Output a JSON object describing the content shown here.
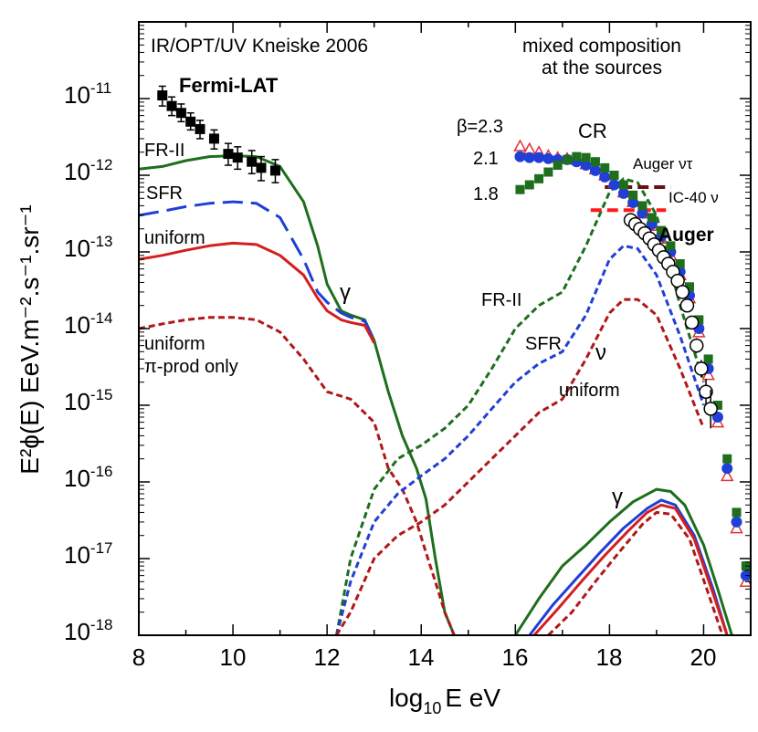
{
  "chart_data": {
    "type": "line",
    "xlabel_prefix": "log",
    "xlabel_sub": "10",
    "xlabel_suffix": "E eV",
    "ylabel": "E²ϕ(E) EeV.m⁻².s⁻¹.sr⁻¹",
    "x_scale": "linear",
    "y_scale": "log",
    "xlim": [
      8,
      21
    ],
    "ylim": [
      1e-18,
      1e-10
    ],
    "x_ticks": [
      "8",
      "10",
      "12",
      "14",
      "16",
      "18",
      "20"
    ],
    "y_ticks": [
      {
        "base": "10",
        "exp": "-11"
      },
      {
        "base": "10",
        "exp": "-12"
      },
      {
        "base": "10",
        "exp": "-13"
      },
      {
        "base": "10",
        "exp": "-14"
      },
      {
        "base": "10",
        "exp": "-15"
      },
      {
        "base": "10",
        "exp": "-16"
      },
      {
        "base": "10",
        "exp": "-17"
      },
      {
        "base": "10",
        "exp": "-18"
      }
    ],
    "annotations": {
      "top_left": "IR/OPT/UV Kneiske 2006",
      "top_right_1": "mixed composition",
      "top_right_2": "at the sources",
      "fermi": "Fermi-LAT",
      "fr2_left": "FR-II",
      "sfr_left": "SFR",
      "uniform_left": "uniform",
      "uniform_pi_1": "uniform",
      "uniform_pi_2": "π-prod only",
      "gamma_1": "γ",
      "gamma_2": "γ",
      "fr2_nu": "FR-II",
      "sfr_nu": "SFR",
      "nu": "ν",
      "uniform_nu": "uniform",
      "beta": "β=2.3",
      "beta_21": "2.1",
      "beta_18": "1.8",
      "cr": "CR",
      "auger_nutau": "Auger ντ",
      "ic40": "IC-40 ν",
      "auger": "Auger"
    },
    "colors": {
      "fr2": "#1e6e1e",
      "sfr": "#1f3fd6",
      "uniform": "#d41f1f",
      "pi_prod": "#b01818",
      "auger_nutau": "#6b1010",
      "ic40": "#ff1a1a",
      "beta23": "#e0303a"
    },
    "series": [
      {
        "name": "FR-II",
        "kind": "photon",
        "style": "solid",
        "color": "#1e6e1e",
        "x": [
          8.0,
          8.5,
          9.0,
          9.5,
          10.0,
          10.5,
          11.0,
          11.5,
          11.8,
          12.0,
          12.3,
          12.5,
          12.8,
          13.0,
          13.3,
          13.6,
          13.9,
          14.1,
          14.3,
          14.5,
          14.7
        ],
        "y": [
          1.2e-12,
          1.3e-12,
          1.55e-12,
          1.75e-12,
          1.8e-12,
          1.75e-12,
          1.3e-12,
          4.5e-13,
          1.2e-13,
          3.8e-14,
          1.7e-14,
          1.5e-14,
          1.3e-14,
          7e-15,
          1.5e-15,
          4e-16,
          1.5e-16,
          6e-17,
          1e-17,
          2e-18,
          1e-18
        ]
      },
      {
        "name": "SFR",
        "kind": "photon",
        "style": "longdash",
        "color": "#1f3fd6",
        "x": [
          8.0,
          8.5,
          9.0,
          9.5,
          10.0,
          10.5,
          11.0,
          11.5,
          11.8,
          12.0,
          12.3,
          12.5,
          12.8,
          13.0
        ],
        "y": [
          3e-13,
          3.4e-13,
          3.9e-13,
          4.3e-13,
          4.5e-13,
          4.3e-13,
          2.8e-13,
          8e-14,
          3e-14,
          2.2e-14,
          1.6e-14,
          1.4e-14,
          1.25e-14,
          7e-15
        ]
      },
      {
        "name": "uniform",
        "kind": "photon",
        "style": "solid",
        "color": "#d41f1f",
        "x": [
          8.0,
          8.5,
          9.0,
          9.5,
          10.0,
          10.5,
          11.0,
          11.5,
          11.8,
          12.0,
          12.3,
          12.5,
          12.8,
          13.0
        ],
        "y": [
          8e-14,
          9e-14,
          1.05e-13,
          1.2e-13,
          1.3e-13,
          1.25e-13,
          9e-14,
          5e-14,
          2.5e-14,
          1.7e-14,
          1.3e-14,
          1.2e-14,
          1.1e-14,
          6.5e-15
        ]
      },
      {
        "name": "uniform π-prod only",
        "kind": "photon",
        "style": "dash",
        "color": "#b01818",
        "x": [
          8.0,
          8.5,
          9.0,
          9.5,
          10.0,
          10.5,
          11.0,
          11.5,
          12.0,
          12.5,
          13.0,
          13.3,
          13.6,
          13.9,
          14.1,
          14.3,
          14.5,
          14.7
        ],
        "y": [
          1e-14,
          1.15e-14,
          1.3e-14,
          1.4e-14,
          1.4e-14,
          1.3e-14,
          9e-15,
          4e-15,
          1.5e-15,
          1.2e-15,
          6e-16,
          1.5e-16,
          8e-17,
          3e-17,
          1.2e-17,
          5e-18,
          2e-18,
          1e-18
        ]
      },
      {
        "name": "FR-II ν",
        "kind": "neutrino",
        "style": "dash",
        "color": "#1e6e1e",
        "x": [
          12.2,
          12.5,
          13.0,
          13.5,
          14.0,
          14.5,
          15.0,
          15.5,
          16.0,
          16.5,
          17.0,
          17.5,
          18.0,
          18.3,
          18.6,
          19.0,
          19.5,
          20.0
        ],
        "y": [
          1e-18,
          1e-17,
          8e-17,
          2e-16,
          3e-16,
          5e-16,
          1e-15,
          3e-15,
          1e-14,
          2e-14,
          3e-14,
          1.2e-13,
          6e-13,
          9e-13,
          8e-13,
          3e-13,
          2e-14,
          2e-15
        ]
      },
      {
        "name": "SFR ν",
        "kind": "neutrino",
        "style": "dash",
        "color": "#1f3fd6",
        "x": [
          12.2,
          12.5,
          13.0,
          13.5,
          14.0,
          14.5,
          15.0,
          15.5,
          16.0,
          16.5,
          17.0,
          17.5,
          18.0,
          18.3,
          18.6,
          19.0,
          19.5,
          20.0
        ],
        "y": [
          1e-18,
          5e-18,
          3e-17,
          7e-17,
          1.2e-16,
          2e-16,
          4e-16,
          9e-16,
          2e-15,
          3.5e-15,
          5e-15,
          1.5e-14,
          8e-14,
          1.2e-13,
          1.1e-13,
          5e-14,
          8e-15,
          1e-15
        ]
      },
      {
        "name": "uniform ν",
        "kind": "neutrino",
        "style": "dash",
        "color": "#b01818",
        "x": [
          12.2,
          12.5,
          13.0,
          13.5,
          14.0,
          14.5,
          15.0,
          15.5,
          16.0,
          16.5,
          17.0,
          17.5,
          18.0,
          18.3,
          18.6,
          19.0,
          19.5,
          20.0
        ],
        "y": [
          1e-18,
          2e-18,
          1e-17,
          2e-17,
          3e-17,
          5e-17,
          1e-16,
          2e-16,
          4e-16,
          8e-16,
          1.2e-15,
          4e-15,
          1.6e-14,
          2.4e-14,
          2.4e-14,
          1.5e-14,
          3e-15,
          5e-16
        ]
      },
      {
        "name": "FR-II γ",
        "kind": "photon-uhe",
        "style": "solid",
        "color": "#1e6e1e",
        "x": [
          16.0,
          16.5,
          17.0,
          17.5,
          18.0,
          18.5,
          19.0,
          19.3,
          19.6,
          20.0,
          20.3,
          20.6
        ],
        "y": [
          1e-18,
          3e-18,
          8e-18,
          1.5e-17,
          3e-17,
          5.5e-17,
          8e-17,
          7.5e-17,
          5e-17,
          1.5e-17,
          4e-18,
          1e-18
        ]
      },
      {
        "name": "SFR γ",
        "kind": "photon-uhe",
        "style": "solid",
        "color": "#1f3fd6",
        "x": [
          16.3,
          16.8,
          17.3,
          17.8,
          18.3,
          18.8,
          19.1,
          19.4,
          19.8,
          20.2,
          20.5
        ],
        "y": [
          1e-18,
          2.5e-18,
          5.5e-18,
          1.2e-17,
          2.5e-17,
          4.5e-17,
          5.8e-17,
          5e-17,
          2e-17,
          4e-18,
          1e-18
        ]
      },
      {
        "name": "uniform γ",
        "kind": "photon-uhe",
        "style": "solid",
        "color": "#d41f1f",
        "x": [
          16.4,
          16.9,
          17.4,
          17.9,
          18.4,
          18.8,
          19.1,
          19.4,
          19.8,
          20.2,
          20.5
        ],
        "y": [
          1e-18,
          2.2e-18,
          5e-18,
          1.1e-17,
          2.3e-17,
          4e-17,
          5e-17,
          4.5e-17,
          1.8e-17,
          3.5e-18,
          1e-18
        ]
      },
      {
        "name": "uniform π-prod γ",
        "kind": "photon-uhe",
        "style": "dash",
        "color": "#b01818",
        "x": [
          16.7,
          17.2,
          17.7,
          18.2,
          18.7,
          19.0,
          19.3,
          19.7,
          20.1,
          20.4
        ],
        "y": [
          1e-18,
          2e-18,
          5e-18,
          1.2e-17,
          2.8e-17,
          4e-17,
          3.8e-17,
          1.8e-17,
          3.5e-18,
          1e-18
        ]
      }
    ],
    "points": {
      "fermi_lat": {
        "x": [
          8.5,
          8.7,
          8.9,
          9.1,
          9.3,
          9.6,
          9.9,
          10.1,
          10.4,
          10.6,
          10.9
        ],
        "y": [
          1.1e-11,
          8e-12,
          6.5e-12,
          5e-12,
          4e-12,
          3e-12,
          1.9e-12,
          1.7e-12,
          1.5e-12,
          1.25e-12,
          1.15e-12
        ],
        "err_lo": [
          8e-12,
          6e-12,
          5e-12,
          3.9e-12,
          3e-12,
          2.2e-12,
          1.35e-12,
          1.2e-12,
          1.05e-12,
          8.5e-13,
          8e-13
        ],
        "err_hi": [
          1.45e-11,
          1.05e-11,
          8.5e-12,
          6.5e-12,
          5.2e-12,
          3.9e-12,
          2.6e-12,
          2.35e-12,
          2.1e-12,
          1.75e-12,
          1.6e-12
        ]
      },
      "cr_beta23": {
        "x": [
          16.1,
          16.3,
          16.5,
          16.7,
          16.9,
          17.1,
          17.3,
          17.5,
          17.7,
          17.9,
          18.1,
          18.3,
          18.5,
          18.7,
          18.9,
          19.1,
          19.3,
          19.5,
          19.7,
          19.9,
          20.1,
          20.3,
          20.5,
          20.7,
          20.9
        ],
        "y": [
          2.4e-12,
          2.2e-12,
          2e-12,
          1.8e-12,
          1.7e-12,
          1.65e-12,
          1.6e-12,
          1.4e-12,
          1.2e-12,
          1e-12,
          8e-13,
          6e-13,
          4.5e-13,
          3.2e-13,
          2.2e-13,
          1.5e-13,
          9e-14,
          5e-14,
          2.5e-14,
          9e-15,
          2.5e-15,
          6e-16,
          1.2e-16,
          2.5e-17,
          5e-18
        ]
      },
      "cr_beta21": {
        "x": [
          16.1,
          16.3,
          16.5,
          16.7,
          16.9,
          17.1,
          17.3,
          17.5,
          17.7,
          17.9,
          18.1,
          18.3,
          18.5,
          18.7,
          18.9,
          19.1,
          19.3,
          19.5,
          19.7,
          19.9,
          20.1,
          20.3,
          20.5,
          20.7,
          20.9
        ],
        "y": [
          1.75e-12,
          1.7e-12,
          1.7e-12,
          1.65e-12,
          1.6e-12,
          1.6e-12,
          1.5e-12,
          1.35e-12,
          1.15e-12,
          9.5e-13,
          7.5e-13,
          5.8e-13,
          4.4e-13,
          3.2e-13,
          2.3e-13,
          1.6e-13,
          1e-13,
          5.5e-14,
          2.7e-14,
          1e-14,
          3e-15,
          7e-16,
          1.5e-16,
          3e-17,
          6e-18
        ]
      },
      "cr_beta18": {
        "x": [
          16.1,
          16.3,
          16.5,
          16.7,
          16.9,
          17.1,
          17.3,
          17.5,
          17.7,
          17.9,
          18.1,
          18.3,
          18.5,
          18.7,
          18.9,
          19.1,
          19.3,
          19.5,
          19.7,
          19.9,
          20.1,
          20.3,
          20.5,
          20.7,
          20.9
        ],
        "y": [
          6.5e-13,
          7.5e-13,
          9e-13,
          1.1e-12,
          1.35e-12,
          1.6e-12,
          1.75e-12,
          1.7e-12,
          1.5e-12,
          1.25e-12,
          1e-12,
          7.5e-13,
          5.5e-13,
          4e-13,
          2.8e-13,
          1.9e-13,
          1.2e-13,
          7e-14,
          3.5e-14,
          1.3e-14,
          4e-15,
          1e-15,
          2e-16,
          4e-17,
          8e-18
        ]
      },
      "auger": {
        "x": [
          18.45,
          18.55,
          18.65,
          18.75,
          18.85,
          18.95,
          19.05,
          19.15,
          19.25,
          19.35,
          19.45,
          19.55,
          19.65,
          19.75,
          19.85,
          19.95,
          20.05,
          20.15
        ],
        "y": [
          2.6e-13,
          2.3e-13,
          2e-13,
          1.75e-13,
          1.5e-13,
          1.25e-13,
          1.05e-13,
          8.5e-14,
          7e-14,
          5.5e-14,
          4.2e-14,
          3e-14,
          2e-14,
          1.2e-14,
          6e-15,
          3e-15,
          1.5e-15,
          9e-16
        ],
        "err_lo": [
          2.4e-13,
          2.1e-13,
          1.85e-13,
          1.6e-13,
          1.38e-13,
          1.15e-13,
          9.6e-14,
          7.7e-14,
          6.3e-14,
          4.9e-14,
          3.7e-14,
          2.6e-14,
          1.7e-14,
          1e-14,
          4.8e-15,
          2.3e-15,
          1e-15,
          5e-16
        ],
        "err_hi": [
          2.8e-13,
          2.5e-13,
          2.15e-13,
          1.9e-13,
          1.62e-13,
          1.35e-13,
          1.14e-13,
          9.3e-14,
          7.7e-14,
          6.1e-14,
          4.7e-14,
          3.4e-14,
          2.3e-14,
          1.4e-14,
          7.5e-15,
          3.9e-15,
          2.2e-15,
          1.6e-15
        ]
      }
    },
    "limits": [
      {
        "name": "Auger ντ",
        "x": [
          17.9,
          19.3
        ],
        "y": 7e-13,
        "color": "#6b1010"
      },
      {
        "name": "IC-40 ν",
        "x": [
          17.6,
          19.2
        ],
        "y": 3.5e-13,
        "color": "#ff1a1a"
      }
    ]
  }
}
